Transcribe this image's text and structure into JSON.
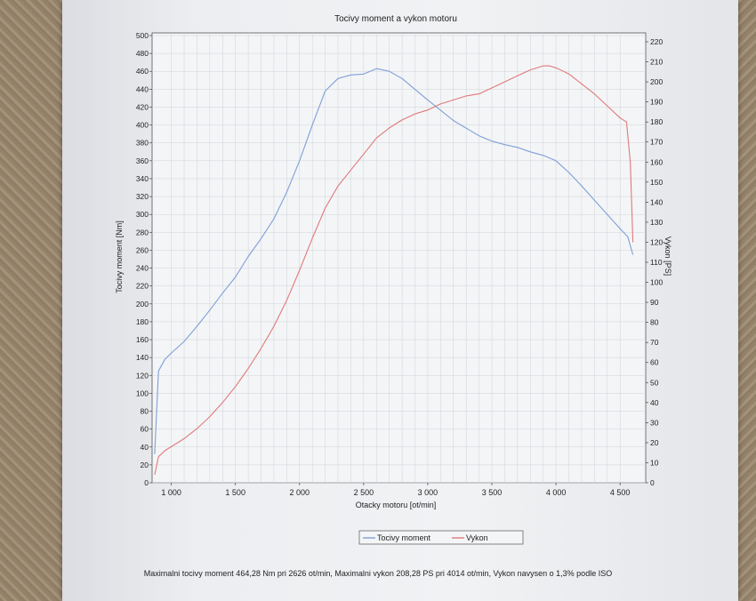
{
  "chart_data": {
    "type": "line",
    "title": "Tocivy moment a vykon motoru",
    "xlabel": "Otacky motoru [ot/min]",
    "ylabel": "Tocivy moment [Nm]",
    "y2label": "Vykon [PS]",
    "xlim": [
      850,
      4700
    ],
    "ylim": [
      0,
      500
    ],
    "y2lim": [
      0,
      230
    ],
    "xticks": [
      1000,
      1500,
      2000,
      2500,
      3000,
      3500,
      4000,
      4500
    ],
    "xtick_labels": [
      "1 000",
      "1 500",
      "2 000",
      "2 500",
      "3 000",
      "3 500",
      "4 000",
      "4 500"
    ],
    "yticks": [
      0,
      20,
      40,
      60,
      80,
      100,
      120,
      140,
      160,
      180,
      200,
      220,
      240,
      260,
      280,
      300,
      320,
      340,
      360,
      380,
      400,
      420,
      440,
      460,
      480,
      500
    ],
    "y2ticks": [
      0,
      10,
      20,
      30,
      40,
      50,
      60,
      70,
      80,
      90,
      100,
      110,
      120,
      130,
      140,
      150,
      160,
      170,
      180,
      190,
      200,
      210,
      220
    ],
    "grid": true,
    "legend_position": "bottom-center",
    "series": [
      {
        "name": "Tocivy moment",
        "axis": "left",
        "color": "#7f9fd8",
        "x": [
          870,
          900,
          950,
          1000,
          1100,
          1200,
          1300,
          1400,
          1500,
          1600,
          1700,
          1800,
          1900,
          2000,
          2100,
          2200,
          2300,
          2400,
          2500,
          2600,
          2700,
          2800,
          2900,
          3000,
          3200,
          3400,
          3500,
          3600,
          3700,
          3800,
          3900,
          4000,
          4100,
          4200,
          4300,
          4400,
          4500,
          4560,
          4600
        ],
        "y": [
          32,
          125,
          138,
          145,
          158,
          175,
          193,
          212,
          230,
          253,
          273,
          295,
          325,
          360,
          400,
          438,
          452,
          456,
          457,
          463,
          460,
          452,
          440,
          428,
          405,
          388,
          382,
          378,
          375,
          370,
          366,
          360,
          347,
          332,
          316,
          300,
          284,
          275,
          255
        ]
      },
      {
        "name": "Vykon",
        "axis": "right",
        "color": "#df7a7a",
        "x": [
          870,
          900,
          950,
          1000,
          1100,
          1200,
          1300,
          1400,
          1500,
          1600,
          1700,
          1800,
          1900,
          2000,
          2100,
          2200,
          2300,
          2400,
          2500,
          2600,
          2700,
          2800,
          2900,
          3000,
          3100,
          3200,
          3300,
          3400,
          3500,
          3600,
          3700,
          3800,
          3900,
          3950,
          4000,
          4100,
          4200,
          4300,
          4400,
          4500,
          4550,
          4580,
          4600
        ],
        "y": [
          4,
          13,
          16,
          18,
          22,
          27,
          33,
          40,
          48,
          57,
          67,
          78,
          91,
          106,
          122,
          137,
          148,
          156,
          164,
          172,
          177,
          181,
          184,
          186,
          189,
          191,
          193,
          194,
          197,
          200,
          203,
          206,
          208,
          208,
          207,
          204,
          199,
          194,
          188,
          182,
          180,
          160,
          120
        ]
      }
    ]
  },
  "footer": {
    "note": "Maximalni tocivy moment 464,28 Nm pri 2626 ot/min,  Maximalni vykon 208,28 PS pri 4014 ot/min,  Vykon navysen o 1,3% podle ISO"
  }
}
